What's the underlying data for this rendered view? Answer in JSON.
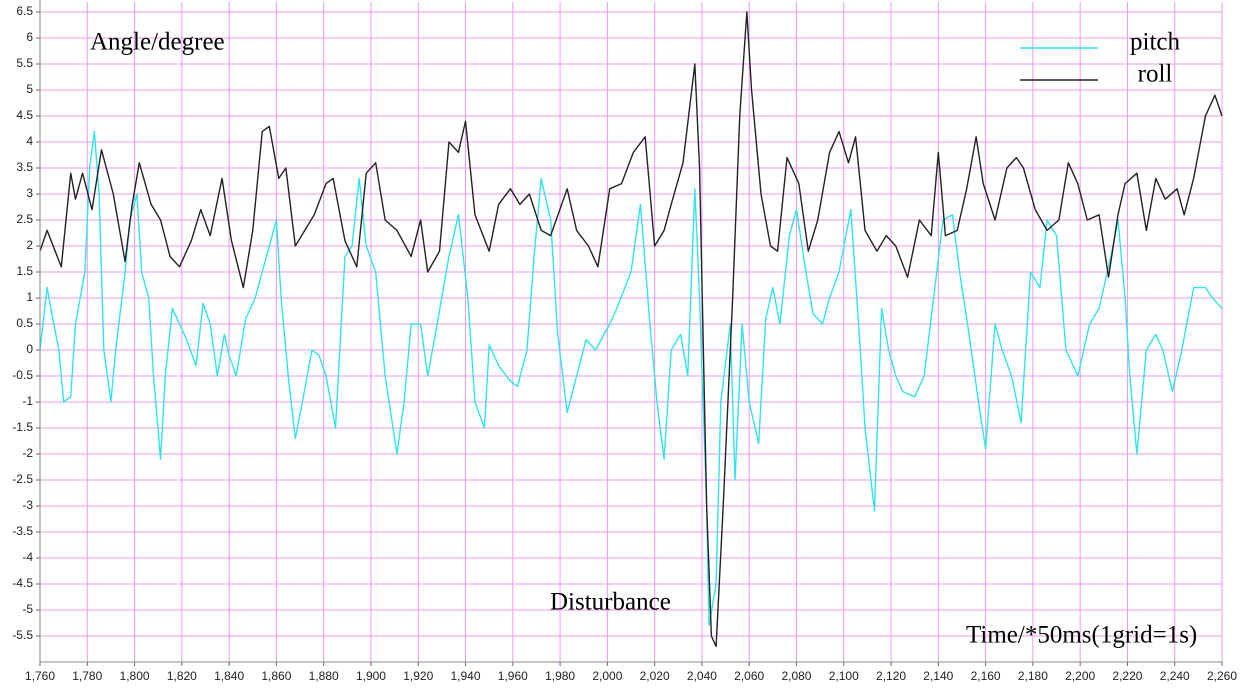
{
  "chart_data": {
    "type": "line",
    "ylabel": "Angle/degree",
    "xlabel": "Time/*50ms(1grid=1s)",
    "annotations": [
      "Disturbance"
    ],
    "legend": "top-right",
    "grid": true,
    "grid_color": "#ee99ee",
    "ylim": [
      -6,
      6.5
    ],
    "yticks": [
      6.5,
      6,
      5.5,
      5,
      4.5,
      4,
      3.5,
      3,
      2.5,
      2,
      1.5,
      1,
      0.5,
      0,
      -0.5,
      -1,
      -1.5,
      -2,
      -2.5,
      -3,
      -3.5,
      -4,
      -4.5,
      -5,
      -5.5
    ],
    "xlim": [
      1760,
      2260
    ],
    "xticks": [
      {
        "value": 1760,
        "label": "1,760"
      },
      {
        "value": 1780,
        "label": "1,780"
      },
      {
        "value": 1800,
        "label": "1,800"
      },
      {
        "value": 1820,
        "label": "1,820"
      },
      {
        "value": 1840,
        "label": "1,840"
      },
      {
        "value": 1860,
        "label": "1,860"
      },
      {
        "value": 1880,
        "label": "1,880"
      },
      {
        "value": 1900,
        "label": "1,900"
      },
      {
        "value": 1920,
        "label": "1,920"
      },
      {
        "value": 1940,
        "label": "1,940"
      },
      {
        "value": 1960,
        "label": "1,960"
      },
      {
        "value": 1980,
        "label": "1,980"
      },
      {
        "value": 2000,
        "label": "2,000"
      },
      {
        "value": 2020,
        "label": "2,020"
      },
      {
        "value": 2040,
        "label": "2,040"
      },
      {
        "value": 2060,
        "label": "2,060"
      },
      {
        "value": 2080,
        "label": "2,080"
      },
      {
        "value": 2100,
        "label": "2,100"
      },
      {
        "value": 2120,
        "label": "2,120"
      },
      {
        "value": 2140,
        "label": "2,140"
      },
      {
        "value": 2160,
        "label": "2,160"
      },
      {
        "value": 2180,
        "label": "2,180"
      },
      {
        "value": 2200,
        "label": "2,200"
      },
      {
        "value": 2220,
        "label": "2,220"
      },
      {
        "value": 2240,
        "label": "2,240"
      },
      {
        "value": 2260,
        "label": "2,260"
      }
    ],
    "series": [
      {
        "name": "pitch",
        "color": "#30e4ec",
        "x": [
          1760,
          1763,
          1765,
          1768,
          1770,
          1773,
          1775,
          1779,
          1781,
          1783,
          1785,
          1787,
          1790,
          1792,
          1796,
          1798,
          1801,
          1803,
          1806,
          1808,
          1811,
          1813,
          1816,
          1818,
          1822,
          1826,
          1829,
          1832,
          1835,
          1838,
          1840,
          1843,
          1847,
          1851,
          1854,
          1857,
          1860,
          1862,
          1865,
          1868,
          1871,
          1875,
          1878,
          1881,
          1885,
          1889,
          1892,
          1895,
          1898,
          1902,
          1906,
          1911,
          1914,
          1917,
          1921,
          1924,
          1928,
          1933,
          1937,
          1941,
          1944,
          1948,
          1950,
          1954,
          1959,
          1962,
          1966,
          1969,
          1972,
          1976,
          1979,
          1983,
          1987,
          1991,
          1995,
          2001,
          2004,
          2010,
          2014,
          2018,
          2021,
          2024,
          2027,
          2031,
          2034,
          2037,
          2039,
          2042,
          2043,
          2046,
          2048,
          2052,
          2054,
          2057,
          2060,
          2064,
          2067,
          2070,
          2073,
          2077,
          2080,
          2084,
          2087,
          2091,
          2094,
          2098,
          2103,
          2107,
          2109,
          2113,
          2116,
          2119,
          2122,
          2125,
          2130,
          2134,
          2138,
          2142,
          2146,
          2149,
          2153,
          2157,
          2160,
          2164,
          2167,
          2171,
          2175,
          2179,
          2183,
          2186,
          2190,
          2194,
          2199,
          2204,
          2208,
          2213,
          2216,
          2219,
          2221,
          2224,
          2228,
          2232,
          2235,
          2239,
          2243,
          2248,
          2253,
          2256,
          2260
        ],
        "values": [
          0.0,
          1.2,
          0.7,
          0.0,
          -1.0,
          -0.9,
          0.5,
          1.5,
          3.5,
          4.2,
          3.0,
          0.0,
          -1.0,
          0.0,
          1.5,
          2.5,
          3.0,
          1.5,
          1.0,
          -0.5,
          -2.1,
          -0.5,
          0.8,
          0.6,
          0.2,
          -0.3,
          0.9,
          0.5,
          -0.5,
          0.3,
          -0.1,
          -0.5,
          0.6,
          1.0,
          1.5,
          2.0,
          2.5,
          1.0,
          -0.5,
          -1.7,
          -1.0,
          0.0,
          -0.1,
          -0.5,
          -1.5,
          1.8,
          2.0,
          3.3,
          2.0,
          1.5,
          -0.5,
          -2.0,
          -1.0,
          0.5,
          0.5,
          -0.5,
          0.5,
          1.8,
          2.6,
          1.0,
          -1.0,
          -1.5,
          0.1,
          -0.3,
          -0.6,
          -0.7,
          0.0,
          1.8,
          3.3,
          2.5,
          0.3,
          -1.2,
          -0.5,
          0.2,
          0.0,
          0.5,
          0.8,
          1.5,
          2.8,
          0.5,
          -1.0,
          -2.1,
          0.0,
          0.3,
          -0.5,
          3.1,
          1.0,
          -3.0,
          -5.3,
          -4.5,
          -1.0,
          0.5,
          -2.5,
          0.5,
          -1.0,
          -1.8,
          0.6,
          1.2,
          0.5,
          2.2,
          2.7,
          1.5,
          0.7,
          0.5,
          1.0,
          1.5,
          2.7,
          0.0,
          -1.5,
          -3.1,
          0.8,
          0.0,
          -0.5,
          -0.8,
          -0.9,
          -0.5,
          1.0,
          2.5,
          2.6,
          1.5,
          0.3,
          -1.0,
          -1.9,
          0.5,
          0.0,
          -0.5,
          -1.4,
          1.5,
          1.2,
          2.5,
          2.2,
          0.0,
          -0.5,
          0.5,
          0.8,
          1.8,
          2.5,
          1.0,
          -0.5,
          -2.0,
          0.0,
          0.3,
          0.0,
          -0.8,
          0.0,
          1.2,
          1.2,
          1.0,
          0.8
        ]
      },
      {
        "name": "roll",
        "color": "#222222",
        "x": [
          1760,
          1763,
          1769,
          1773,
          1775,
          1778,
          1782,
          1786,
          1791,
          1796,
          1799,
          1802,
          1807,
          1811,
          1815,
          1819,
          1824,
          1828,
          1832,
          1837,
          1841,
          1846,
          1850,
          1854,
          1857,
          1861,
          1864,
          1868,
          1872,
          1876,
          1881,
          1884,
          1889,
          1894,
          1898,
          1902,
          1906,
          1911,
          1917,
          1921,
          1924,
          1929,
          1933,
          1937,
          1940,
          1944,
          1950,
          1954,
          1959,
          1963,
          1967,
          1972,
          1976,
          1983,
          1987,
          1992,
          1996,
          2001,
          2006,
          2011,
          2016,
          2020,
          2024,
          2027,
          2032,
          2037,
          2039,
          2042,
          2044,
          2046,
          2049,
          2053,
          2056,
          2059,
          2061,
          2065,
          2069,
          2072,
          2076,
          2081,
          2085,
          2089,
          2094,
          2098,
          2102,
          2105,
          2109,
          2114,
          2118,
          2122,
          2127,
          2132,
          2137,
          2140,
          2143,
          2148,
          2152,
          2156,
          2159,
          2164,
          2169,
          2173,
          2176,
          2181,
          2186,
          2191,
          2195,
          2199,
          2203,
          2208,
          2212,
          2216,
          2219,
          2224,
          2228,
          2232,
          2236,
          2241,
          2244,
          2248,
          2253,
          2257,
          2260
        ],
        "values": [
          1.9,
          2.3,
          1.6,
          3.4,
          2.9,
          3.4,
          2.7,
          3.85,
          3.0,
          1.7,
          2.8,
          3.6,
          2.8,
          2.5,
          1.8,
          1.6,
          2.1,
          2.7,
          2.2,
          3.3,
          2.1,
          1.2,
          2.3,
          4.2,
          4.3,
          3.3,
          3.5,
          2.0,
          2.3,
          2.6,
          3.2,
          3.3,
          2.1,
          1.6,
          3.4,
          3.6,
          2.5,
          2.3,
          1.8,
          2.5,
          1.5,
          1.9,
          4.0,
          3.8,
          4.4,
          2.6,
          1.9,
          2.8,
          3.1,
          2.8,
          3.0,
          2.3,
          2.2,
          3.1,
          2.3,
          2.0,
          1.6,
          3.1,
          3.2,
          3.8,
          4.1,
          2.0,
          2.3,
          2.8,
          3.6,
          5.5,
          3.5,
          -3.0,
          -5.5,
          -5.7,
          -3.0,
          1.0,
          4.5,
          6.5,
          5.0,
          3.0,
          2.0,
          1.9,
          3.7,
          3.2,
          1.9,
          2.5,
          3.8,
          4.2,
          3.6,
          4.1,
          2.3,
          1.9,
          2.2,
          2.0,
          1.4,
          2.5,
          2.2,
          3.8,
          2.2,
          2.3,
          3.1,
          4.1,
          3.2,
          2.5,
          3.5,
          3.7,
          3.5,
          2.7,
          2.3,
          2.5,
          3.6,
          3.2,
          2.5,
          2.6,
          1.4,
          2.6,
          3.2,
          3.4,
          2.3,
          3.3,
          2.9,
          3.1,
          2.6,
          3.3,
          4.5,
          4.9,
          4.5
        ]
      }
    ]
  }
}
